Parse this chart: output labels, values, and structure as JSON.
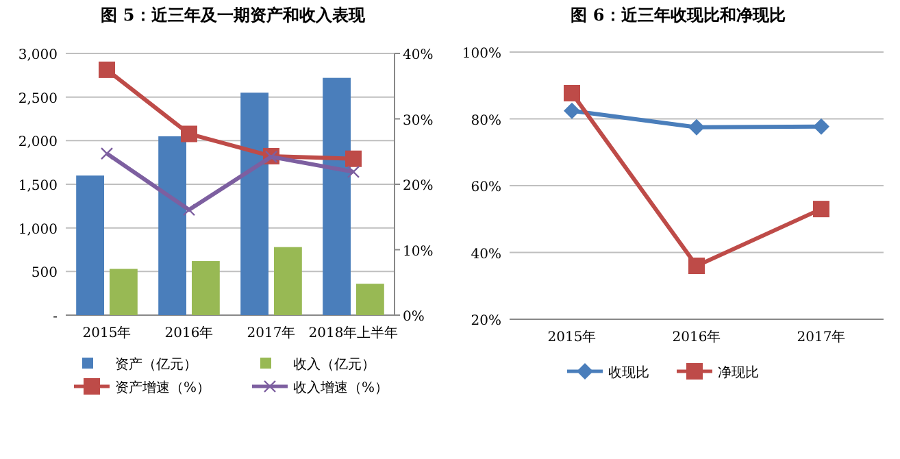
{
  "chart_data": [
    {
      "type": "bar",
      "title": "图 5：近三年及一期资产和收入表现",
      "categories": [
        "2015年",
        "2016年",
        "2017年",
        "2018年上半年"
      ],
      "series": [
        {
          "name": "资产（亿元）",
          "color": "#4a7ebb",
          "values": [
            1600,
            2050,
            2550,
            2720
          ]
        },
        {
          "name": "收入（亿元）",
          "color": "#98b954",
          "values": [
            530,
            620,
            780,
            360
          ]
        },
        {
          "name": "资产增速（%）",
          "type": "line",
          "axis": "y2",
          "marker": "square",
          "color": "#be4b48",
          "values": [
            37.5,
            27.7,
            24.3,
            23.9
          ]
        },
        {
          "name": "收入增速（%）",
          "type": "line",
          "axis": "y2",
          "marker": "cross",
          "color": "#7d5fa0",
          "values": [
            24.7,
            16.1,
            24.2,
            21.9
          ]
        }
      ],
      "ylim": [
        0,
        3000
      ],
      "yticks": [
        {
          "value": 0,
          "label": "-"
        },
        {
          "value": 500,
          "label": "500"
        },
        {
          "value": 1000,
          "label": "1,000"
        },
        {
          "value": 1500,
          "label": "1,500"
        },
        {
          "value": 2000,
          "label": "2,000"
        },
        {
          "value": 2500,
          "label": "2,500"
        },
        {
          "value": 3000,
          "label": "3,000"
        }
      ],
      "y2lim": [
        0,
        40
      ],
      "y2ticks": [
        {
          "value": 0,
          "label": "0%"
        },
        {
          "value": 10,
          "label": "10%"
        },
        {
          "value": 20,
          "label": "20%"
        },
        {
          "value": 30,
          "label": "30%"
        },
        {
          "value": 40,
          "label": "40%"
        }
      ],
      "grid": "y",
      "legend": "bottom"
    },
    {
      "type": "line",
      "title": "图 6：近三年收现比和净现比",
      "categories": [
        "2015年",
        "2016年",
        "2017年"
      ],
      "series": [
        {
          "name": "收现比",
          "marker": "diamond",
          "color": "#4a7ebb",
          "values": [
            82.4,
            77.5,
            77.7
          ]
        },
        {
          "name": "净现比",
          "marker": "square",
          "color": "#be4b48",
          "values": [
            87.7,
            36.0,
            53.0
          ]
        }
      ],
      "ylim": [
        20,
        100
      ],
      "yticks": [
        {
          "value": 20,
          "label": "20%"
        },
        {
          "value": 40,
          "label": "40%"
        },
        {
          "value": 60,
          "label": "60%"
        },
        {
          "value": 80,
          "label": "80%"
        },
        {
          "value": 100,
          "label": "100%"
        }
      ],
      "grid": "y",
      "legend": "bottom"
    }
  ]
}
